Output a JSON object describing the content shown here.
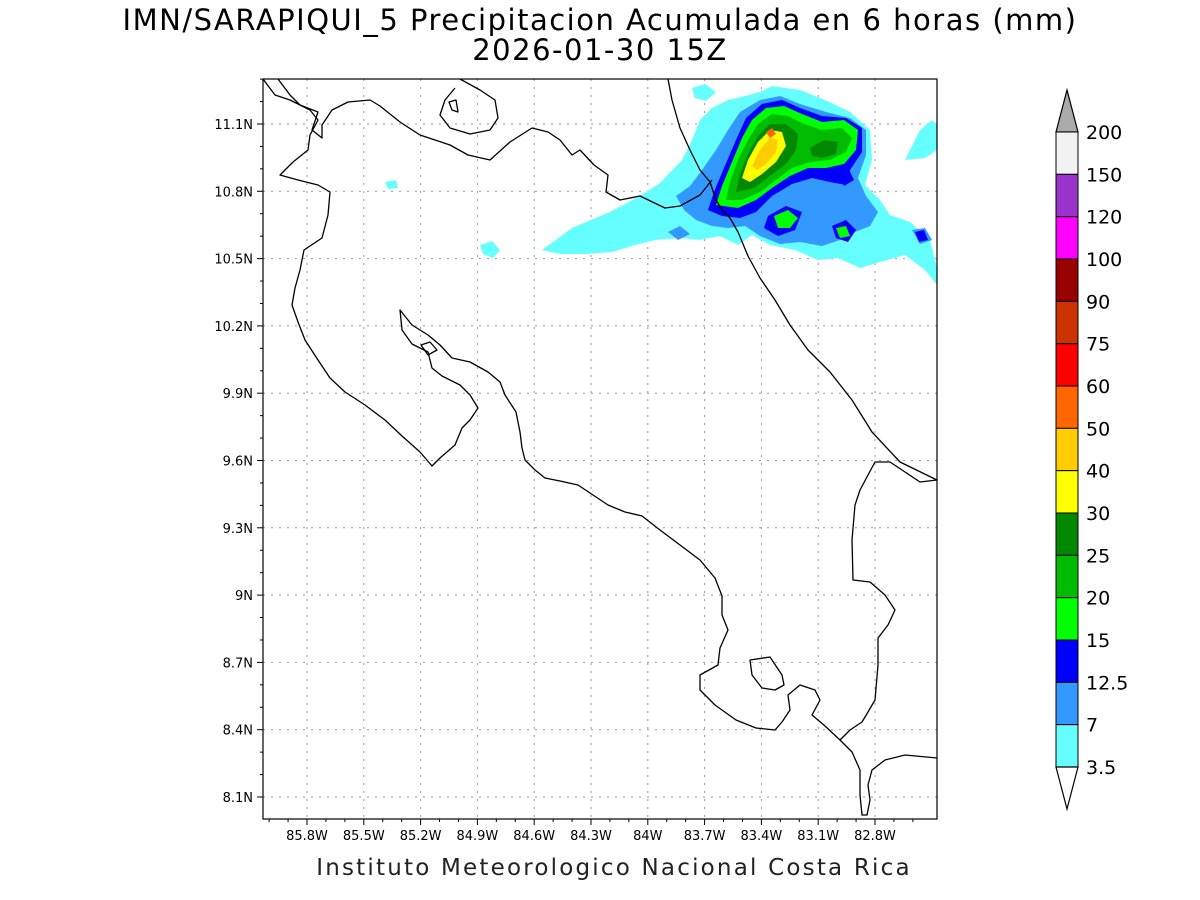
{
  "title": {
    "line1": "IMN/SARAPIQUI_5 Precipitacion Acumulada en 6 horas (mm)",
    "line2": "2026-01-30 15Z"
  },
  "credit": "Instituto Meteorologico Nacional Costa Rica",
  "map": {
    "lon_ticks": [
      "85.8W",
      "85.5W",
      "85.2W",
      "84.9W",
      "84.6W",
      "84.3W",
      "84W",
      "83.7W",
      "83.4W",
      "83.1W",
      "82.8W"
    ],
    "lat_ticks": [
      "11.1N",
      "10.8N",
      "10.5N",
      "10.2N",
      "9.9N",
      "9.6N",
      "9.3N",
      "9N",
      "8.7N",
      "8.4N",
      "8.1N"
    ]
  },
  "colorbar": {
    "levels": [
      "200",
      "150",
      "120",
      "100",
      "90",
      "75",
      "60",
      "50",
      "40",
      "30",
      "25",
      "20",
      "15",
      "12.5",
      "7",
      "3.5"
    ],
    "colors": [
      "#f2f2f2",
      "#9933cc",
      "#ff00ff",
      "#990000",
      "#cc3300",
      "#ff0000",
      "#ff6600",
      "#ffcc00",
      "#ffff00",
      "#008800",
      "#00bb00",
      "#00ff00",
      "#0000ff",
      "#3399ff",
      "#66ffff"
    ],
    "top_arrow_color": "#aaaaaa",
    "bottom_arrow_color": "#ffffff"
  }
}
